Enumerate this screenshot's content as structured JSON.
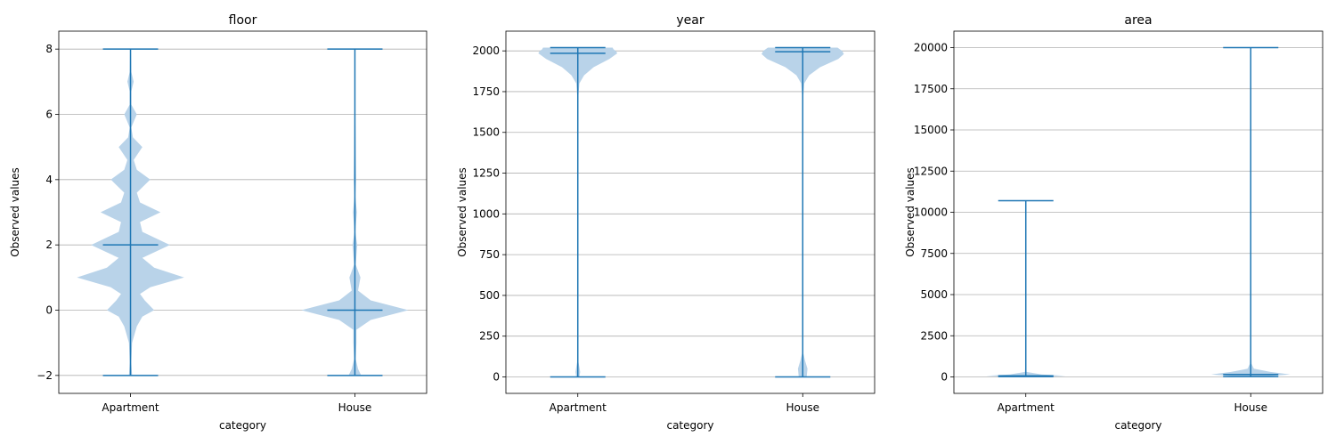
{
  "chart_data": [
    {
      "type": "violin",
      "title": "floor",
      "xlabel": "category",
      "ylabel": "Observed values",
      "categories": [
        "Apartment",
        "House"
      ],
      "ylim": [
        -2.55,
        8.55
      ],
      "yticks": [
        -2,
        0,
        2,
        4,
        6,
        8
      ],
      "ytick_labels": [
        "−2",
        "0",
        "2",
        "4",
        "6",
        "8"
      ],
      "grid": "y",
      "series": [
        {
          "category": "Apartment",
          "min": -2,
          "max": 8,
          "median": 2,
          "density": [
            [
              -2,
              0.02
            ],
            [
              -1.6,
              0.01
            ],
            [
              -1,
              0.02
            ],
            [
              -0.5,
              0.08
            ],
            [
              -0.2,
              0.15
            ],
            [
              0,
              0.3
            ],
            [
              0.3,
              0.18
            ],
            [
              0.5,
              0.12
            ],
            [
              0.7,
              0.25
            ],
            [
              1,
              0.68
            ],
            [
              1.3,
              0.3
            ],
            [
              1.6,
              0.15
            ],
            [
              2,
              0.5
            ],
            [
              2.4,
              0.15
            ],
            [
              2.7,
              0.12
            ],
            [
              3,
              0.38
            ],
            [
              3.3,
              0.12
            ],
            [
              3.6,
              0.08
            ],
            [
              4,
              0.25
            ],
            [
              4.3,
              0.08
            ],
            [
              4.6,
              0.04
            ],
            [
              5,
              0.15
            ],
            [
              5.3,
              0.03
            ],
            [
              5.6,
              0.01
            ],
            [
              6,
              0.08
            ],
            [
              6.3,
              0.01
            ],
            [
              6.7,
              0.01
            ],
            [
              7,
              0.04
            ],
            [
              7.3,
              0.01
            ],
            [
              8,
              0.005
            ]
          ]
        },
        {
          "category": "House",
          "min": -2,
          "max": 8,
          "median": 0,
          "density": [
            [
              -2,
              0.08
            ],
            [
              -1.8,
              0.04
            ],
            [
              -1.5,
              0.01
            ],
            [
              -1,
              0.02
            ],
            [
              -0.6,
              0.02
            ],
            [
              -0.3,
              0.2
            ],
            [
              0,
              0.68
            ],
            [
              0.3,
              0.2
            ],
            [
              0.6,
              0.04
            ],
            [
              1,
              0.07
            ],
            [
              1.4,
              0.01
            ],
            [
              2,
              0.03
            ],
            [
              2.4,
              0.005
            ],
            [
              3,
              0.025
            ],
            [
              3.5,
              0.005
            ],
            [
              4,
              0.015
            ],
            [
              5,
              0.01
            ],
            [
              6,
              0.005
            ],
            [
              8,
              0.002
            ]
          ]
        }
      ]
    },
    {
      "type": "violin",
      "title": "year",
      "xlabel": "category",
      "ylabel": "Observed values",
      "categories": [
        "Apartment",
        "House"
      ],
      "ylim": [
        -101,
        2121
      ],
      "yticks": [
        0,
        250,
        500,
        750,
        1000,
        1250,
        1500,
        1750,
        2000
      ],
      "ytick_labels": [
        "0",
        "250",
        "500",
        "750",
        "1000",
        "1250",
        "1500",
        "1750",
        "2000"
      ],
      "grid": "y",
      "series": [
        {
          "category": "Apartment",
          "min": 0,
          "max": 2020,
          "median": 1985,
          "density": [
            [
              0,
              0.02
            ],
            [
              30,
              0.03
            ],
            [
              60,
              0.02
            ],
            [
              100,
              0.005
            ],
            [
              300,
              0.004
            ],
            [
              1000,
              0.004
            ],
            [
              1700,
              0.004
            ],
            [
              1800,
              0.02
            ],
            [
              1850,
              0.08
            ],
            [
              1900,
              0.2
            ],
            [
              1950,
              0.4
            ],
            [
              1985,
              0.5
            ],
            [
              2000,
              0.48
            ],
            [
              2010,
              0.45
            ],
            [
              2020,
              0.44
            ]
          ]
        },
        {
          "category": "House",
          "min": 0,
          "max": 2020,
          "median": 1995,
          "density": [
            [
              0,
              0.05
            ],
            [
              50,
              0.06
            ],
            [
              100,
              0.03
            ],
            [
              150,
              0.005
            ],
            [
              400,
              0.004
            ],
            [
              1000,
              0.004
            ],
            [
              1700,
              0.004
            ],
            [
              1800,
              0.02
            ],
            [
              1850,
              0.08
            ],
            [
              1900,
              0.22
            ],
            [
              1950,
              0.45
            ],
            [
              1980,
              0.52
            ],
            [
              2000,
              0.5
            ],
            [
              2020,
              0.44
            ]
          ]
        }
      ]
    },
    {
      "type": "violin",
      "title": "area",
      "xlabel": "category",
      "ylabel": "Observed values",
      "categories": [
        "Apartment",
        "House"
      ],
      "ylim": [
        -1000,
        21000
      ],
      "yticks": [
        0,
        2500,
        5000,
        7500,
        10000,
        12500,
        15000,
        17500,
        20000
      ],
      "ytick_labels": [
        "0",
        "2500",
        "5000",
        "7500",
        "10000",
        "12500",
        "15000",
        "17500",
        "20000"
      ],
      "grid": "y",
      "series": [
        {
          "category": "Apartment",
          "min": 20,
          "max": 10700,
          "median": 70,
          "density": [
            [
              20,
              0.3
            ],
            [
              70,
              0.5
            ],
            [
              150,
              0.2
            ],
            [
              300,
              0.01
            ],
            [
              1000,
              0.004
            ],
            [
              10700,
              0.002
            ]
          ]
        },
        {
          "category": "House",
          "min": 20,
          "max": 20000,
          "median": 150,
          "density": [
            [
              20,
              0.15
            ],
            [
              150,
              0.5
            ],
            [
              300,
              0.25
            ],
            [
              500,
              0.04
            ],
            [
              800,
              0.01
            ],
            [
              2000,
              0.004
            ],
            [
              20000,
              0.002
            ]
          ]
        }
      ]
    }
  ],
  "colors": {
    "violin_fill": "#b9d3e9",
    "stat_line": "#1f77b4",
    "grid": "#b0b0b0",
    "axis": "#000000"
  }
}
